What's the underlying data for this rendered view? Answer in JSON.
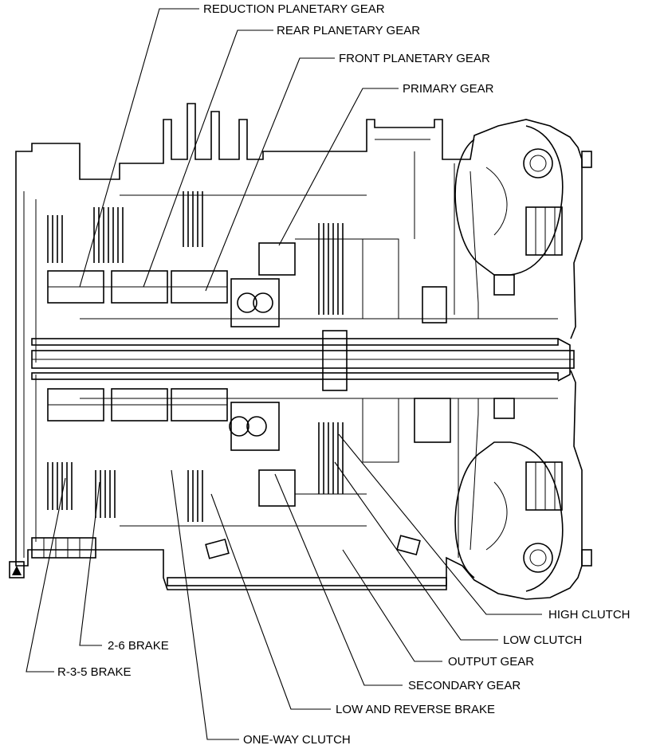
{
  "labels": {
    "reduction_planetary_gear": "REDUCTION PLANETARY GEAR",
    "rear_planetary_gear": "REAR PLANETARY GEAR",
    "front_planetary_gear": "FRONT PLANETARY GEAR",
    "primary_gear": "PRIMARY GEAR",
    "high_clutch": "HIGH CLUTCH",
    "low_clutch": "LOW CLUTCH",
    "output_gear": "OUTPUT GEAR",
    "secondary_gear": "SECONDARY GEAR",
    "low_and_reverse_brake": "LOW AND REVERSE BRAKE",
    "one_way_clutch": "ONE-WAY CLUTCH",
    "brake_2_6": "2-6 BRAKE",
    "brake_r_3_5": "R-3-5 BRAKE"
  }
}
